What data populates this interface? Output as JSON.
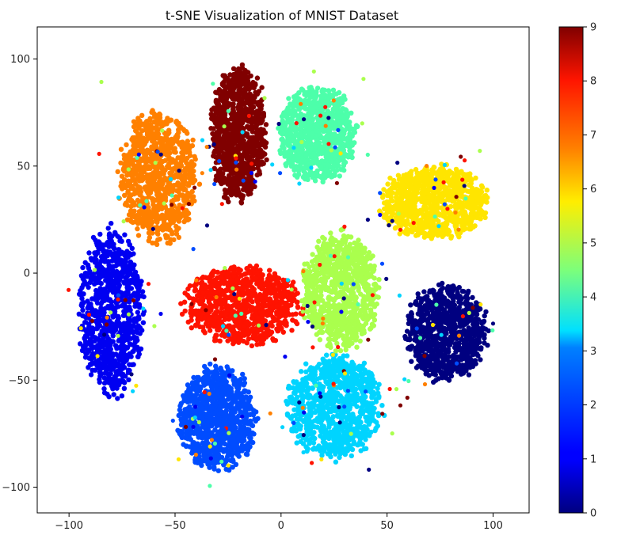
{
  "chart_data": {
    "type": "scatter",
    "title": "t-SNE Visualization of MNIST Dataset",
    "xlabel": "",
    "ylabel": "",
    "xlim": [
      -115,
      117
    ],
    "ylim": [
      -112,
      115
    ],
    "x_ticks": [
      -100,
      -50,
      0,
      50,
      100
    ],
    "y_ticks": [
      -100,
      -50,
      0,
      50,
      100
    ],
    "grid": false,
    "colormap": "jet",
    "colorbar": {
      "range": [
        0,
        9
      ],
      "ticks": [
        0,
        1,
        2,
        3,
        4,
        5,
        6,
        7,
        8,
        9
      ]
    },
    "clusters": [
      {
        "label": 0,
        "color": "#000080",
        "center": [
          78,
          -28
        ],
        "spread": [
          19,
          22
        ],
        "points": 900
      },
      {
        "label": 1,
        "color": "#0000f1",
        "center": [
          -80,
          -18
        ],
        "spread": [
          15,
          38
        ],
        "points": 900
      },
      {
        "label": 2,
        "color": "#004cff",
        "center": [
          -30,
          -68
        ],
        "spread": [
          18,
          24
        ],
        "points": 900
      },
      {
        "label": 3,
        "color": "#00d4ff",
        "center": [
          25,
          -62
        ],
        "spread": [
          22,
          24
        ],
        "points": 900
      },
      {
        "label": 4,
        "color": "#4dffaa",
        "center": [
          17,
          65
        ],
        "spread": [
          18,
          22
        ],
        "points": 900
      },
      {
        "label": 5,
        "color": "#aaff4d",
        "center": [
          28,
          -8
        ],
        "spread": [
          18,
          27
        ],
        "points": 900
      },
      {
        "label": 6,
        "color": "#ffe500",
        "center": [
          72,
          33
        ],
        "spread": [
          25,
          17
        ],
        "points": 900
      },
      {
        "label": 7,
        "color": "#ff8000",
        "center": [
          -58,
          45
        ],
        "spread": [
          18,
          30
        ],
        "points": 900
      },
      {
        "label": 8,
        "color": "#ff1300",
        "center": [
          -18,
          -15
        ],
        "spread": [
          27,
          18
        ],
        "points": 900
      },
      {
        "label": 9,
        "color": "#800000",
        "center": [
          -20,
          65
        ],
        "spread": [
          13,
          32
        ],
        "points": 900
      }
    ]
  }
}
